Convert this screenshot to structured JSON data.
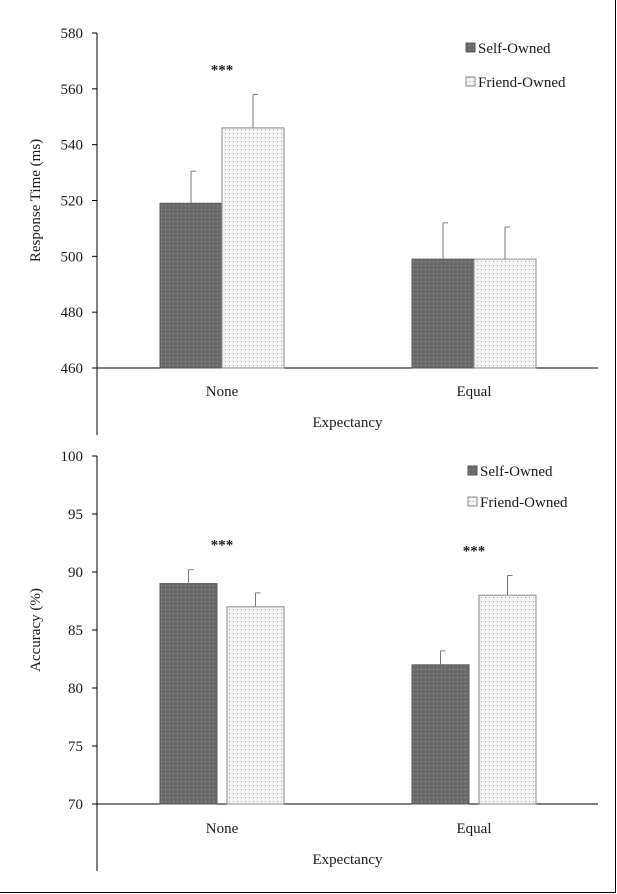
{
  "colors": {
    "self_fill": "#6a6a6a",
    "friend_fill": "#f0f0f0",
    "friend_stroke": "#8a8a8a",
    "axis": "#000000",
    "error_bar": "#7a7a7a"
  },
  "chart_data": [
    {
      "type": "bar",
      "categories": [
        "None",
        "Equal"
      ],
      "series": [
        {
          "name": "Self-Owned",
          "values": [
            519,
            499
          ],
          "errors": [
            11.5,
            13
          ]
        },
        {
          "name": "Friend-Owned",
          "values": [
            546,
            499
          ],
          "errors": [
            12,
            11.5
          ]
        }
      ],
      "title": "",
      "xlabel": "Expectancy",
      "ylabel": "Response Time (ms)",
      "ylim": [
        460,
        580
      ],
      "yticks": [
        "460",
        "480",
        "500",
        "520",
        "540",
        "560",
        "580"
      ],
      "significance": [
        {
          "category": "None",
          "label": "***"
        }
      ],
      "grid": false,
      "legend_position": "top-right"
    },
    {
      "type": "bar",
      "categories": [
        "None",
        "Equal"
      ],
      "series": [
        {
          "name": "Self-Owned",
          "values": [
            89,
            82
          ],
          "errors": [
            1.2,
            1.2
          ]
        },
        {
          "name": "Friend-Owned",
          "values": [
            87,
            88
          ],
          "errors": [
            1.2,
            1.7
          ]
        }
      ],
      "title": "",
      "xlabel": "Expectancy",
      "ylabel": "Accuracy (%)",
      "ylim": [
        70,
        100
      ],
      "yticks": [
        "70",
        "75",
        "80",
        "85",
        "90",
        "95",
        "100"
      ],
      "significance": [
        {
          "category": "None",
          "label": "***"
        },
        {
          "category": "Equal",
          "label": "***"
        }
      ],
      "grid": false,
      "legend_position": "top-right"
    }
  ]
}
